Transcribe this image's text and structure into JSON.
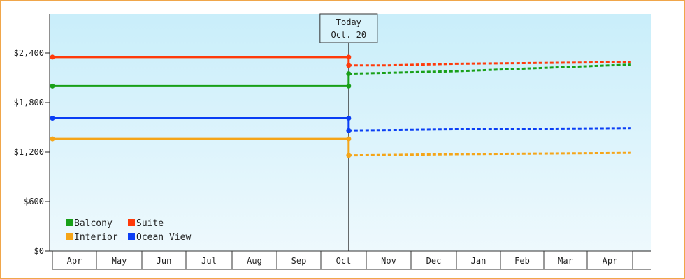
{
  "chart_data": {
    "type": "line",
    "today_marker": {
      "line1": "Today",
      "line2": "Oct. 20",
      "date": "2024-10-20"
    },
    "y_ticks": [
      {
        "value": 0,
        "label": "$0"
      },
      {
        "value": 600,
        "label": "$600"
      },
      {
        "value": 1200,
        "label": "$1,200"
      },
      {
        "value": 1800,
        "label": "$1,800"
      },
      {
        "value": 2400,
        "label": "$2,400"
      }
    ],
    "ylim": [
      0,
      2400
    ],
    "months": [
      "Apr",
      "May",
      "Jun",
      "Jul",
      "Aug",
      "Sep",
      "Oct",
      "Nov",
      "Dec",
      "Jan",
      "Feb",
      "Mar",
      "Apr"
    ],
    "legend": [
      {
        "name": "Balcony",
        "color": "#18a018"
      },
      {
        "name": "Suite",
        "color": "#ff3a0a"
      },
      {
        "name": "Interior",
        "color": "#f5a518"
      },
      {
        "name": "Ocean View",
        "color": "#0a3ef5"
      }
    ],
    "series": [
      {
        "name": "Balcony",
        "color": "#18a018",
        "past": [
          [
            "2024-04-01",
            2000
          ],
          [
            "2024-10-20",
            2000
          ]
        ],
        "forecast": [
          [
            "2024-10-20",
            2150
          ],
          [
            "2024-11-15",
            2160
          ],
          [
            "2025-01-01",
            2180
          ],
          [
            "2025-04-30",
            2260
          ]
        ]
      },
      {
        "name": "Suite",
        "color": "#ff3a0a",
        "past": [
          [
            "2024-04-01",
            2350
          ],
          [
            "2024-10-20",
            2350
          ]
        ],
        "forecast": [
          [
            "2024-10-20",
            2250
          ],
          [
            "2024-11-15",
            2250
          ],
          [
            "2025-01-01",
            2270
          ],
          [
            "2025-04-30",
            2290
          ]
        ]
      },
      {
        "name": "Ocean View",
        "color": "#0a3ef5",
        "past": [
          [
            "2024-04-01",
            1610
          ],
          [
            "2024-10-20",
            1610
          ]
        ],
        "forecast": [
          [
            "2024-10-20",
            1460
          ],
          [
            "2024-11-15",
            1465
          ],
          [
            "2025-01-01",
            1475
          ],
          [
            "2025-04-30",
            1490
          ]
        ]
      },
      {
        "name": "Interior",
        "color": "#f5a518",
        "past": [
          [
            "2024-04-01",
            1360
          ],
          [
            "2024-10-20",
            1360
          ]
        ],
        "forecast": [
          [
            "2024-10-20",
            1160
          ],
          [
            "2024-11-15",
            1165
          ],
          [
            "2025-01-01",
            1175
          ],
          [
            "2025-04-30",
            1190
          ]
        ]
      }
    ]
  }
}
